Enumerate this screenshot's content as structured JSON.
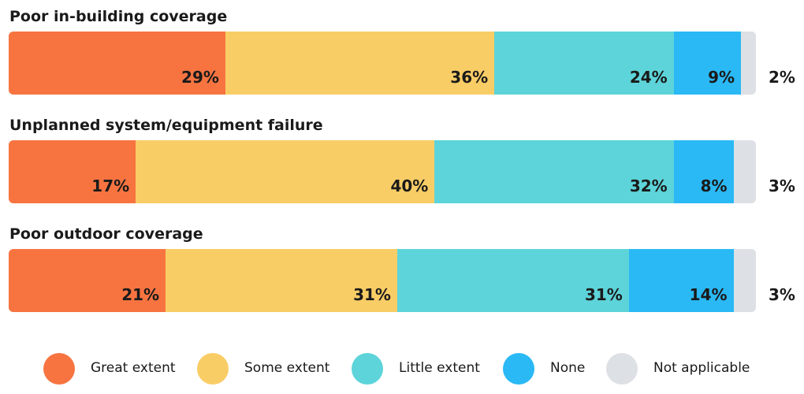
{
  "chart_data": {
    "type": "bar",
    "orientation": "horizontal-stacked-100",
    "categories": [
      "Poor in-building coverage",
      "Unplanned system/equipment failure",
      "Poor outdoor coverage"
    ],
    "series": [
      {
        "name": "Great extent",
        "color": "#f77441",
        "values": [
          29,
          17,
          21
        ],
        "labels": [
          "29%",
          "17%",
          "21%"
        ]
      },
      {
        "name": "Some extent",
        "color": "#f9cd66",
        "values": [
          36,
          40,
          31
        ],
        "labels": [
          "36%",
          "40%",
          "31%"
        ]
      },
      {
        "name": "Little extent",
        "color": "#5dd4d9",
        "values": [
          24,
          32,
          31
        ],
        "labels": [
          "24%",
          "32%",
          "31%"
        ]
      },
      {
        "name": "None",
        "color": "#2ab9f5",
        "values": [
          9,
          8,
          14
        ],
        "labels": [
          "9%",
          "8%",
          "14%"
        ]
      },
      {
        "name": "Not applicable",
        "color": "#dde0e4",
        "values": [
          2,
          3,
          3
        ],
        "labels": [
          "2%",
          "3%",
          "3%"
        ]
      }
    ],
    "legend_position": "bottom",
    "grid": false,
    "xlim": [
      0,
      100
    ]
  }
}
